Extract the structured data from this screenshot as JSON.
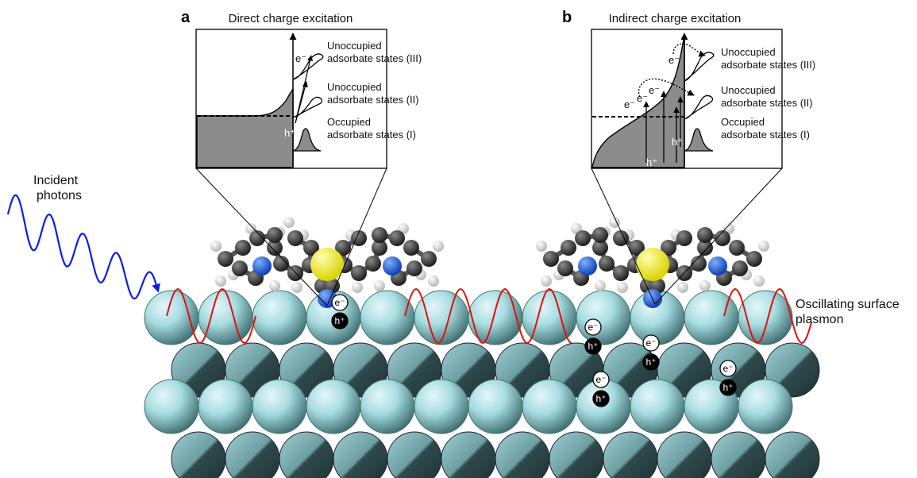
{
  "panel_a": {
    "letter": "a",
    "title": "Direct charge excitation",
    "electron_label": "e⁻",
    "hole_label": "h⁺",
    "state_III": [
      "Unoccupied",
      "adsorbate states (III)"
    ],
    "state_II": [
      "Unoccupied",
      "adsorbate states (II)"
    ],
    "state_I": [
      "Occupied",
      "adsorbate states (I)"
    ]
  },
  "panel_b": {
    "letter": "b",
    "title": "Indirect charge excitation",
    "electron_label": "e⁻",
    "hole_label": "h⁺",
    "state_III": [
      "Unoccupied",
      "adsorbate states (III)"
    ],
    "state_II": [
      "Unoccupied",
      "adsorbate states (II)"
    ],
    "state_I": [
      "Occupied",
      "adsorbate states (I)"
    ]
  },
  "left_label": [
    "Incident",
    "photons"
  ],
  "right_label": [
    "Oscillating surface",
    "plasmon"
  ],
  "carrier": {
    "electron": "e⁻",
    "hole": "h⁺"
  },
  "colors": {
    "photon": "#0a1ee6",
    "plasmon": "#e01010",
    "metal_atom": "#a7dde2",
    "carbon": "#3a3a3a",
    "nitrogen": "#1a5ad8",
    "sulfur": "#f2f000",
    "hydrogen": "#f2f2f2",
    "fill_states": "#8c8c8c"
  }
}
